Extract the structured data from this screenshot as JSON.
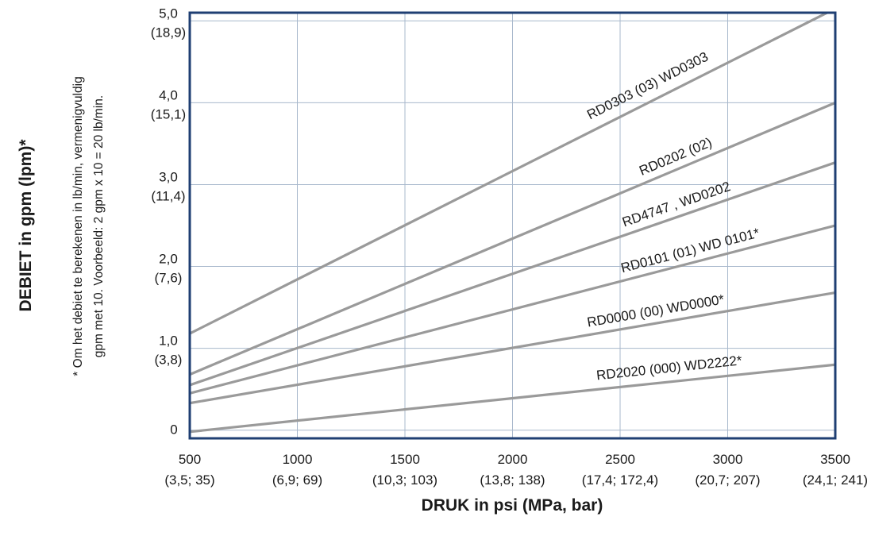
{
  "chart_data": {
    "type": "line",
    "xlabel": "DRUK in psi (MPa, bar)",
    "ylabel": "DEBIET in gpm (lpm)*",
    "note_lines": [
      "* Om het debiet te berekenen in lb/min, vermenigvuldig",
      "gpm met 10. Voorbeeld: 2 gpm x 10 = 20 lb/min."
    ],
    "xlim": [
      500,
      3500
    ],
    "ylim": [
      -0.1,
      5.1
    ],
    "grid": true,
    "x_ticks": [
      {
        "value": 500,
        "label": "500",
        "sublabel": "(3,5; 35)"
      },
      {
        "value": 1000,
        "label": "1000",
        "sublabel": "(6,9; 69)"
      },
      {
        "value": 1500,
        "label": "1500",
        "sublabel": "(10,3; 103)"
      },
      {
        "value": 2000,
        "label": "2000",
        "sublabel": "(13,8; 138)"
      },
      {
        "value": 2500,
        "label": "2500",
        "sublabel": "(17,4; 172,4)"
      },
      {
        "value": 3000,
        "label": "3000",
        "sublabel": "(20,7; 207)"
      },
      {
        "value": 3500,
        "label": "3500",
        "sublabel": "(24,1; 241)"
      }
    ],
    "y_ticks": [
      {
        "value": 0,
        "label": "0",
        "sublabel": ""
      },
      {
        "value": 1,
        "label": "1,0",
        "sublabel": "(3,8)"
      },
      {
        "value": 2,
        "label": "2,0",
        "sublabel": "(7,6)"
      },
      {
        "value": 3,
        "label": "3,0",
        "sublabel": "(11,4)"
      },
      {
        "value": 4,
        "label": "4,0",
        "sublabel": "(15,1)"
      },
      {
        "value": 5,
        "label": "5,0",
        "sublabel": "(18,9)"
      }
    ],
    "series": [
      {
        "name": "RD0303 (03) WD0303",
        "x": [
          500,
          3500
        ],
        "y": [
          1.18,
          5.15
        ]
      },
      {
        "name": "RD0202 (02)",
        "x": [
          500,
          3500
        ],
        "y": [
          0.68,
          4.0
        ]
      },
      {
        "name": "RD4747 , WD0202",
        "x": [
          500,
          3500
        ],
        "y": [
          0.55,
          3.27
        ]
      },
      {
        "name": "RD0101 (01) WD 0101*",
        "x": [
          500,
          3500
        ],
        "y": [
          0.45,
          2.5
        ]
      },
      {
        "name": "RD0000 (00) WD0000*",
        "x": [
          500,
          3500
        ],
        "y": [
          0.33,
          1.68
        ]
      },
      {
        "name": "RD2020 (000) WD2222*",
        "x": [
          500,
          3500
        ],
        "y": [
          -0.02,
          0.8
        ]
      }
    ],
    "colors": {
      "frame": "#1f3f73",
      "grid": "#a8b8cc",
      "line": "#9a9a9a"
    }
  }
}
